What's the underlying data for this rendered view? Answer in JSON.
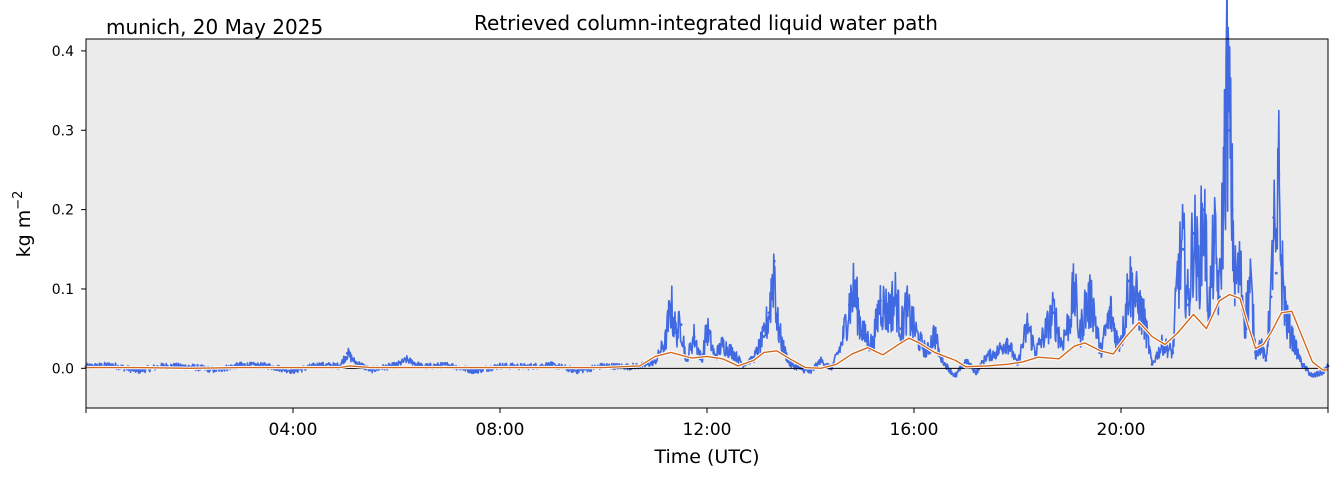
{
  "chart_data": {
    "type": "line",
    "title": "Retrieved column-integrated liquid water path",
    "subtitle": "munich, 20 May 2025",
    "xlabel": "Time (UTC)",
    "ylabel": "kg m",
    "ylabel_superscript": "−2",
    "xlim": [
      0,
      24
    ],
    "ylim": [
      -0.05,
      0.415
    ],
    "x_ticks": [
      {
        "value": 4,
        "label": "04:00"
      },
      {
        "value": 8,
        "label": "08:00"
      },
      {
        "value": 12,
        "label": "12:00"
      },
      {
        "value": 16,
        "label": "16:00"
      },
      {
        "value": 20,
        "label": "20:00"
      }
    ],
    "y_ticks": [
      {
        "value": 0.0,
        "label": "0.0"
      },
      {
        "value": 0.1,
        "label": "0.1"
      },
      {
        "value": 0.2,
        "label": "0.2"
      },
      {
        "value": 0.3,
        "label": "0.3"
      },
      {
        "value": 0.4,
        "label": "0.4"
      }
    ],
    "grid": false,
    "zero_line": true,
    "colors": {
      "background": "#ebebeb",
      "raw": "#4169e1",
      "smoothed_outer": "#ffffff",
      "smoothed_inner": "#d2691e",
      "zero_line": "#000000"
    },
    "series": [
      {
        "kind": "raw",
        "x": [
          0,
          0.5,
          1,
          1.5,
          2,
          2.5,
          3,
          3.5,
          4,
          4.5,
          4.9,
          5.05,
          5.2,
          5.5,
          6,
          6.2,
          6.5,
          7,
          7.5,
          8,
          8.5,
          9,
          9.5,
          10,
          10.5,
          10.8,
          11.0,
          11.2,
          11.3,
          11.4,
          11.5,
          11.6,
          11.75,
          11.9,
          12.0,
          12.15,
          12.3,
          12.5,
          12.7,
          12.9,
          13.1,
          13.2,
          13.3,
          13.35,
          13.45,
          13.6,
          13.8,
          14.0,
          14.2,
          14.4,
          14.6,
          14.75,
          14.85,
          14.95,
          15.05,
          15.2,
          15.35,
          15.5,
          15.65,
          15.75,
          15.85,
          15.95,
          16.1,
          16.25,
          16.4,
          16.5,
          16.6,
          16.8,
          17.0,
          17.2,
          17.4,
          17.6,
          17.8,
          18.0,
          18.2,
          18.35,
          18.5,
          18.7,
          18.85,
          19.0,
          19.1,
          19.2,
          19.3,
          19.45,
          19.6,
          19.8,
          19.95,
          20.05,
          20.15,
          20.3,
          20.45,
          20.6,
          20.8,
          21.0,
          21.1,
          21.2,
          21.3,
          21.4,
          21.5,
          21.6,
          21.7,
          21.8,
          21.9,
          22.0,
          22.05,
          22.1,
          22.15,
          22.2,
          22.3,
          22.4,
          22.5,
          22.6,
          22.7,
          22.8,
          22.9,
          22.95,
          23.0,
          23.05,
          23.1,
          23.2,
          23.35,
          23.5,
          23.7,
          23.9,
          24.0
        ],
        "y": [
          0.002,
          0.004,
          -0.003,
          0.003,
          0.002,
          -0.002,
          0.004,
          0.003,
          -0.003,
          0.004,
          0.003,
          0.019,
          0.008,
          -0.002,
          0.004,
          0.011,
          0.002,
          0.004,
          -0.003,
          0.003,
          0.002,
          0.004,
          -0.003,
          0.003,
          0.002,
          0.004,
          0.008,
          0.035,
          0.08,
          0.045,
          0.055,
          0.01,
          0.04,
          0.01,
          0.05,
          0.015,
          0.03,
          0.02,
          0.005,
          0.012,
          0.04,
          0.07,
          0.135,
          0.06,
          0.03,
          0.005,
          0.0,
          -0.005,
          0.01,
          0.0,
          0.03,
          0.08,
          0.1,
          0.06,
          0.04,
          0.03,
          0.085,
          0.07,
          0.09,
          0.05,
          0.075,
          0.06,
          0.035,
          0.02,
          0.045,
          0.015,
          0.005,
          -0.01,
          0.01,
          -0.005,
          0.015,
          0.02,
          0.035,
          0.005,
          0.055,
          0.02,
          0.04,
          0.07,
          0.03,
          0.06,
          0.1,
          0.04,
          0.075,
          0.085,
          0.02,
          0.07,
          0.03,
          0.05,
          0.11,
          0.085,
          0.06,
          0.005,
          0.03,
          0.02,
          0.12,
          0.15,
          0.08,
          0.17,
          0.12,
          0.2,
          0.07,
          0.16,
          0.09,
          0.26,
          0.365,
          0.3,
          0.2,
          0.11,
          0.12,
          0.06,
          0.11,
          0.02,
          0.03,
          0.01,
          0.09,
          0.19,
          0.12,
          0.245,
          0.13,
          0.06,
          0.03,
          0.005,
          -0.01,
          -0.005,
          0.003
        ]
      },
      {
        "kind": "smoothed",
        "x": [
          0,
          1,
          2,
          3,
          4,
          4.9,
          5.1,
          5.5,
          6,
          7,
          8,
          9,
          10,
          10.7,
          11.0,
          11.3,
          11.7,
          12.0,
          12.3,
          12.6,
          12.9,
          13.1,
          13.35,
          13.6,
          13.9,
          14.2,
          14.5,
          14.8,
          15.1,
          15.4,
          15.7,
          15.9,
          16.1,
          16.4,
          16.8,
          17.0,
          17.4,
          17.8,
          18.1,
          18.4,
          18.8,
          19.1,
          19.3,
          19.6,
          19.85,
          20.1,
          20.35,
          20.6,
          20.85,
          21.1,
          21.4,
          21.65,
          21.9,
          22.1,
          22.3,
          22.45,
          22.6,
          22.75,
          22.9,
          23.1,
          23.3,
          23.5,
          23.7,
          23.9,
          24.0
        ],
        "y": [
          0.001,
          0.001,
          0.0,
          0.001,
          0.001,
          0.001,
          0.003,
          0.001,
          0.001,
          0.001,
          0.001,
          0.001,
          0.001,
          0.003,
          0.015,
          0.02,
          0.013,
          0.015,
          0.012,
          0.003,
          0.01,
          0.02,
          0.022,
          0.012,
          0.001,
          0.0,
          0.005,
          0.018,
          0.026,
          0.017,
          0.03,
          0.038,
          0.032,
          0.02,
          0.01,
          0.002,
          0.003,
          0.005,
          0.008,
          0.014,
          0.012,
          0.028,
          0.032,
          0.022,
          0.018,
          0.04,
          0.058,
          0.04,
          0.03,
          0.045,
          0.068,
          0.05,
          0.085,
          0.093,
          0.088,
          0.055,
          0.025,
          0.03,
          0.045,
          0.07,
          0.072,
          0.04,
          0.008,
          -0.002,
          -0.002
        ]
      }
    ]
  }
}
